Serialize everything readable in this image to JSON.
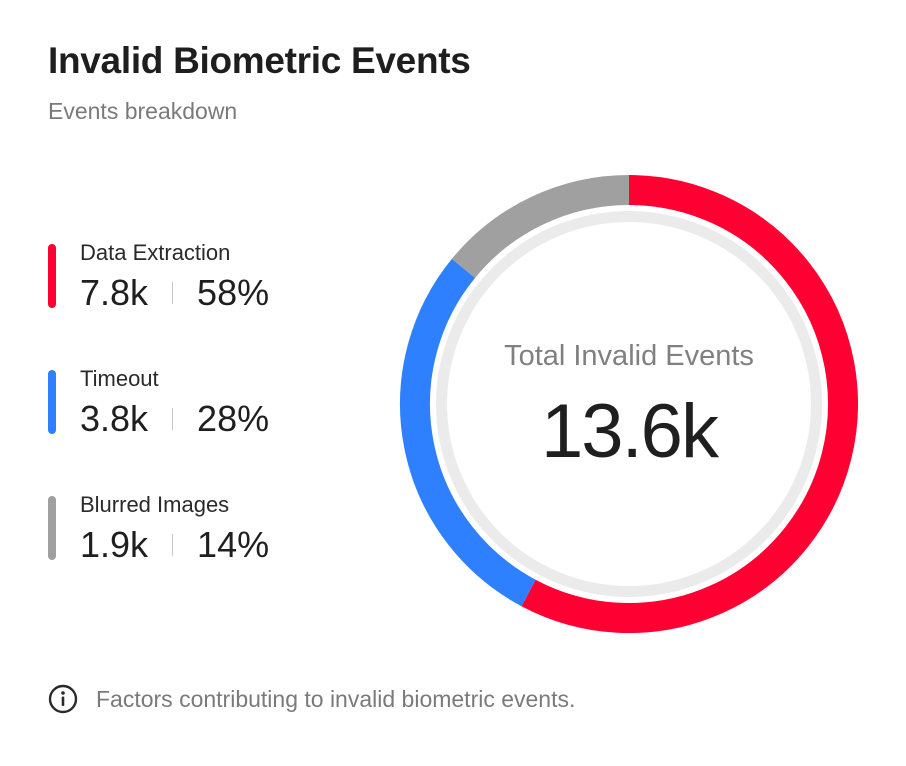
{
  "header": {
    "title": "Invalid Biometric Events",
    "subtitle": "Events breakdown"
  },
  "legend": [
    {
      "label": "Data Extraction",
      "value": "7.8k",
      "percent": "58%",
      "color": "#ff0033"
    },
    {
      "label": "Timeout",
      "value": "3.8k",
      "percent": "28%",
      "color": "#2f80ff"
    },
    {
      "label": "Blurred Images",
      "value": "1.9k",
      "percent": "14%",
      "color": "#a0a0a0"
    }
  ],
  "center": {
    "label": "Total Invalid Events",
    "value": "13.6k"
  },
  "footer": {
    "icon": "info-icon",
    "text": "Factors contributing to invalid biometric events."
  },
  "chart_data": {
    "type": "pie",
    "donut": true,
    "categories": [
      "Data Extraction",
      "Timeout",
      "Blurred Images"
    ],
    "values": [
      7.8,
      3.8,
      1.9
    ],
    "percents": [
      58,
      28,
      14
    ],
    "colors": [
      "#ff0033",
      "#2f80ff",
      "#a0a0a0"
    ],
    "track_color": "#ebebeb",
    "total_label": "Total Invalid Events",
    "total_value": "13.6k",
    "start": "top",
    "direction": "clockwise"
  }
}
